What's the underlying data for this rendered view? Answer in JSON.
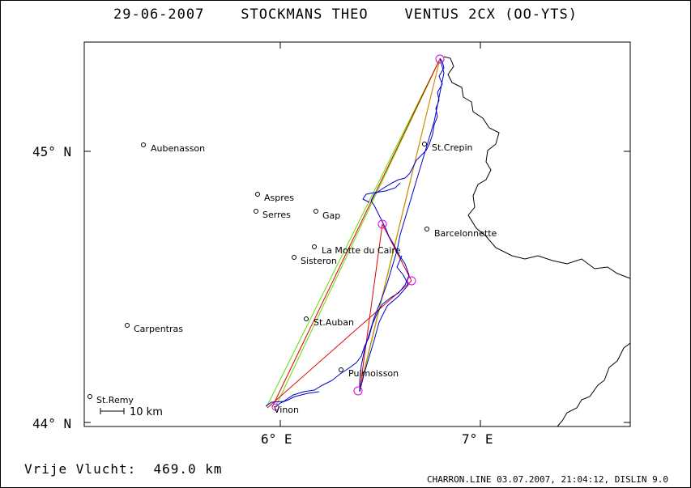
{
  "title": "29-06-2007    STOCKMANS THEO    VENTUS 2CX (OO-YTS)",
  "distance_label": "Vrije Vlucht:  469.0 km",
  "footer": "CHARRON.LINE 03.07.2007, 21:04:12, DISLIN 9.0",
  "axes": {
    "y_ticks": [
      "45° N",
      "44° N"
    ],
    "x_ticks": [
      "6° E",
      "7° E"
    ]
  },
  "scale_bar_label": "10 km",
  "towns": [
    "Aubenasson",
    "Aspres",
    "Serres",
    "Gap",
    "St.Crepin",
    "Barcelonnette",
    "La Motte du Caire",
    "Sisteron",
    "St.Auban",
    "Carpentras",
    "Puimoisson",
    "St.Remy",
    "Vinon"
  ],
  "colors": {
    "track": "#0000cc",
    "border": "#000000",
    "leg_red": "#e00000",
    "leg_green": "#66dd00",
    "turnpoint": "#dd00dd"
  }
}
